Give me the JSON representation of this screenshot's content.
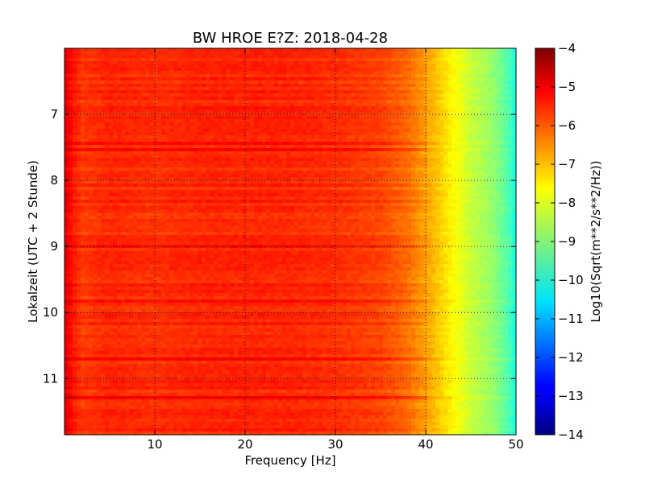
{
  "chart_data": {
    "type": "heatmap",
    "title": "BW HROE E?Z: 2018-04-28",
    "xlabel": "Frequency [Hz]",
    "ylabel": "Lokalzeit (UTC + 2 Stunde)",
    "xlim": [
      0,
      50
    ],
    "ylim": [
      6,
      11.85
    ],
    "y_inverted": true,
    "x_ticks": [
      10,
      20,
      30,
      40,
      50
    ],
    "y_ticks": [
      7,
      8,
      9,
      10,
      11
    ],
    "grid": true,
    "colormap": "jet",
    "colorbar": {
      "label": "Log10(Sqrt(m**2/s**2/Hz))",
      "range": [
        -14,
        -4
      ],
      "ticks": [
        -4,
        -5,
        -6,
        -7,
        -8,
        -9,
        -10,
        -11,
        -12,
        -13,
        -14
      ]
    },
    "frequency_profile": {
      "frequency_hz": [
        0,
        0.5,
        1,
        2,
        5,
        10,
        15,
        20,
        25,
        30,
        35,
        38,
        40,
        41,
        42,
        43,
        44,
        45,
        46,
        47,
        48,
        49,
        49.5,
        50
      ],
      "level": [
        -5.0,
        -5.2,
        -5.5,
        -5.8,
        -5.6,
        -5.7,
        -5.6,
        -5.6,
        -5.6,
        -5.7,
        -5.9,
        -6.3,
        -6.8,
        -7.1,
        -7.4,
        -7.7,
        -8.0,
        -8.3,
        -8.5,
        -8.7,
        -9.0,
        -9.4,
        -9.7,
        -10.1
      ]
    }
  }
}
